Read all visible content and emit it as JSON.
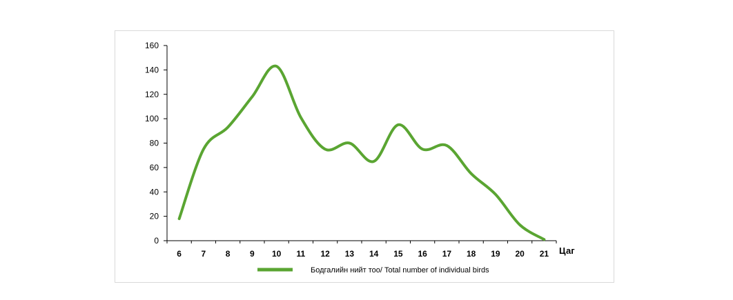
{
  "chart_data": {
    "type": "line",
    "title": "",
    "xlabel": "Цаг",
    "ylabel": "",
    "categories": [
      "6",
      "7",
      "8",
      "9",
      "10",
      "11",
      "12",
      "13",
      "14",
      "15",
      "16",
      "17",
      "18",
      "19",
      "20",
      "21"
    ],
    "ylim": [
      0,
      160
    ],
    "yticks": [
      0,
      20,
      40,
      60,
      80,
      100,
      120,
      140,
      160
    ],
    "grid": false,
    "legend_position": "bottom",
    "series": [
      {
        "name": "Бодгалийн нийт тоо/ Total number of individual birds",
        "color": "#5aa532",
        "values": [
          18,
          75,
          93,
          118,
          143,
          101,
          75,
          80,
          65,
          95,
          75,
          78,
          55,
          38,
          13,
          1
        ]
      }
    ]
  }
}
